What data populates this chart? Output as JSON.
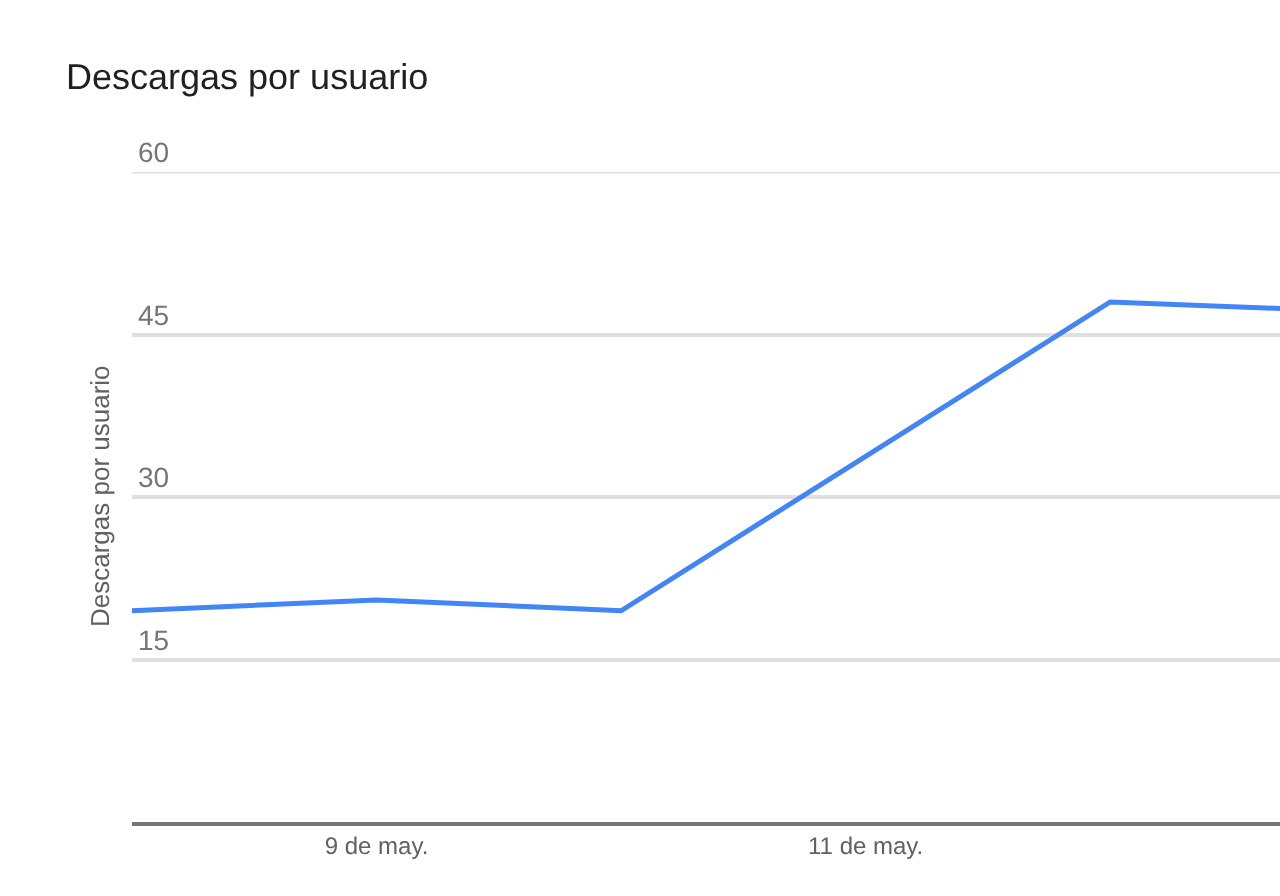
{
  "chart_data": {
    "type": "line",
    "title": "Descargas por usuario",
    "ylabel": "Descargas por usuario",
    "x": [
      "--05-08",
      "--05-09",
      "--05-10",
      "--05-12",
      "--05-12T16:40"
    ],
    "series": [
      {
        "color": "#4285f4",
        "values": [
          19.5,
          20.5,
          19.5,
          48.0,
          47.4
        ]
      }
    ],
    "xlim": [
      "--05-08",
      "--05-12T16:40"
    ],
    "xticks": [
      {
        "value": "--05-09",
        "label": "9 de may."
      },
      {
        "value": "--05-11",
        "label": "11 de may."
      }
    ],
    "ylim": [
      0,
      60
    ],
    "yticks": [
      15,
      30,
      45,
      60
    ],
    "grid": "y",
    "marker": "none",
    "line_style": "solid"
  }
}
